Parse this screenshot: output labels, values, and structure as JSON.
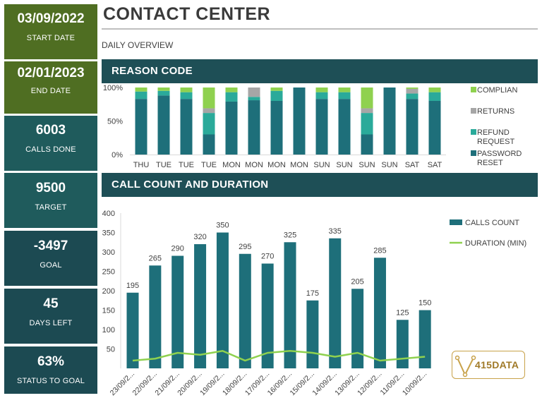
{
  "kpis": {
    "start_date": {
      "value": "03/09/2022",
      "label": "START DATE"
    },
    "end_date": {
      "value": "02/01/2023",
      "label": "END DATE"
    },
    "calls_done": {
      "value": "6003",
      "label": "CALLS DONE"
    },
    "target": {
      "value": "9500",
      "label": "TARGET"
    },
    "goal": {
      "value": "-3497",
      "label": "GOAL"
    },
    "days_left": {
      "value": "45",
      "label": "DAYS LEFT"
    },
    "status": {
      "value": "63%",
      "label": "STATUS TO GOAL"
    }
  },
  "header": {
    "title": "CONTACT CENTER",
    "subtitle": "DAILY OVERVIEW"
  },
  "sections": {
    "reason_code": "REASON CODE",
    "call_count": "CALL COUNT AND DURATION"
  },
  "logo": {
    "text": "415DATA"
  },
  "colors": {
    "dark_green": "#4f6e22",
    "teal_panel": "#1f5b5c",
    "navy_panel": "#1c4a52",
    "password": "#1e6f7a",
    "refund": "#2aaa9a",
    "returns": "#a6a6a6",
    "complain": "#8fd14f",
    "duration": "#8fd14f"
  },
  "chart_data": [
    {
      "type": "bar",
      "stacked": true,
      "categories": [
        "THU",
        "TUE",
        "TUE",
        "TUE",
        "MON",
        "MON",
        "MON",
        "MON",
        "SUN",
        "SUN",
        "SUN",
        "SUN",
        "SAT",
        "SAT"
      ],
      "series": [
        {
          "name": "PASSWORD RESET",
          "values": [
            83,
            88,
            83,
            30,
            79,
            81,
            80,
            100,
            83,
            83,
            30,
            100,
            83,
            80
          ]
        },
        {
          "name": "REFUND REQUEST",
          "values": [
            11,
            7,
            10,
            32,
            14,
            5,
            15,
            0,
            10,
            10,
            32,
            0,
            8,
            13
          ]
        },
        {
          "name": "RETURNS",
          "values": [
            0,
            0,
            0,
            7,
            0,
            14,
            0,
            0,
            0,
            0,
            7,
            0,
            7,
            0
          ]
        },
        {
          "name": "COMPLIAN",
          "values": [
            6,
            5,
            7,
            31,
            7,
            0,
            5,
            0,
            7,
            7,
            31,
            0,
            2,
            7
          ]
        }
      ],
      "ylim": [
        0,
        100
      ],
      "yticks": [
        "0%",
        "50%",
        "100%"
      ],
      "legend": "right"
    },
    {
      "type": "bar",
      "categories": [
        "23/09/2...",
        "22/09/2...",
        "21/09/2...",
        "20/09/2...",
        "19/09/2...",
        "18/09/2...",
        "17/09/2...",
        "16/09/2...",
        "15/09/2...",
        "14/09/2...",
        "13/09/2...",
        "12/09/2...",
        "11/09/2...",
        "10/09/2..."
      ],
      "series": [
        {
          "name": "CALLS COUNT",
          "type": "bar",
          "values": [
            195,
            265,
            290,
            320,
            350,
            295,
            270,
            325,
            175,
            335,
            205,
            285,
            125,
            150
          ]
        },
        {
          "name": "DURATION (MIN)",
          "type": "line",
          "values": [
            20,
            25,
            40,
            35,
            45,
            20,
            40,
            45,
            40,
            30,
            40,
            20,
            25,
            30
          ]
        }
      ],
      "ylim": [
        0,
        400
      ],
      "yticks": [
        50,
        100,
        150,
        200,
        250,
        300,
        350,
        400
      ],
      "legend": "right"
    }
  ]
}
